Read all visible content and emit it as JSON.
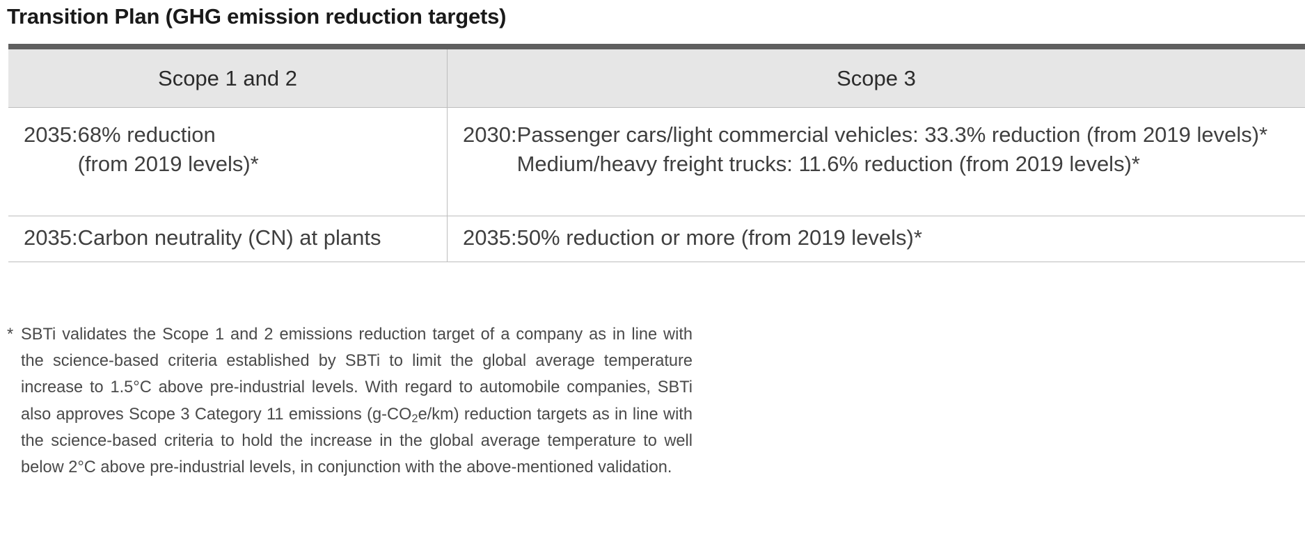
{
  "title": "Transition Plan (GHG emission reduction targets)",
  "table": {
    "headers": [
      "Scope 1 and 2",
      "Scope 3"
    ],
    "rows": [
      {
        "scope12": {
          "year": "2035: ",
          "lines": [
            "68% reduction",
            "(from 2019 levels)*"
          ]
        },
        "scope3": {
          "year": "2030: ",
          "lines": [
            "Passenger cars/light commercial vehicles: 33.3% reduction (from 2019 levels)*",
            "Medium/heavy freight trucks: 11.6% reduction (from 2019 levels)*"
          ]
        }
      },
      {
        "scope12": {
          "year": "2035: ",
          "lines": [
            "Carbon neutrality (CN) at plants"
          ]
        },
        "scope3": {
          "year": "2035: ",
          "lines": [
            "50% reduction or more (from 2019 levels)*"
          ]
        }
      }
    ]
  },
  "footnote": {
    "mark": "*",
    "before_sub": "SBTi validates the Scope 1 and 2 emissions reduction target of a company as in line with the science-based criteria established by SBTi to limit the global average temperature increase to 1.5°C above pre-industrial levels. With regard to automobile companies, SBTi also approves Scope 3 Category 11 emissions (g-CO",
    "sub": "2",
    "after_sub": "e/km) reduction targets as in line with the science-based criteria to hold the increase in the global average temperature to well below 2°C above pre-industrial levels, in conjunction with the above-mentioned validation."
  }
}
